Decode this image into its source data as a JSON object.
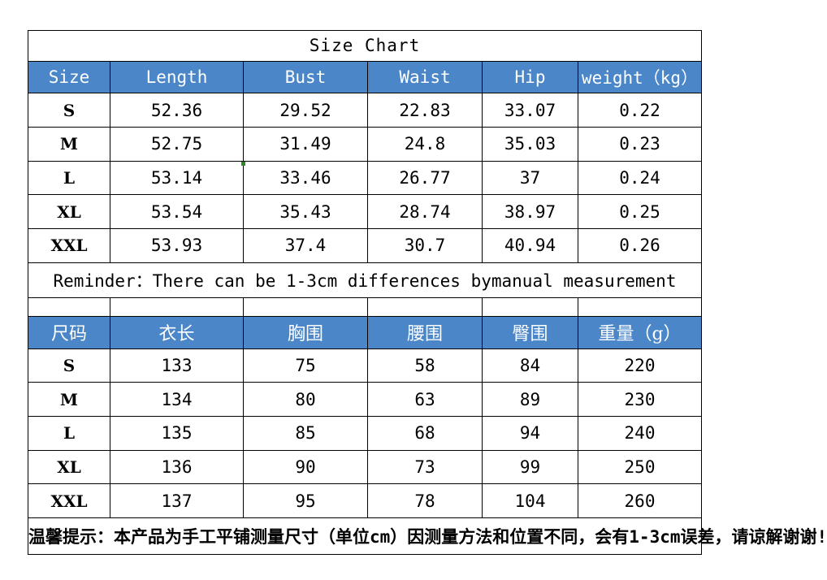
{
  "title": "Size Chart",
  "en_table": {
    "headers": [
      "Size",
      "Length",
      "Bust",
      "Waist",
      "Hip",
      "weight（kg）"
    ],
    "rows": [
      [
        "S",
        "52.36",
        "29.52",
        "22.83",
        "33.07",
        "0.22"
      ],
      [
        "M",
        "52.75",
        "31.49",
        "24.8",
        "35.03",
        "0.23"
      ],
      [
        "L",
        "53.14",
        "33.46",
        "26.77",
        "37",
        "0.24"
      ],
      [
        "XL",
        "53.54",
        "35.43",
        "28.74",
        "38.97",
        "0.25"
      ],
      [
        "XXL",
        "53.93",
        "37.4",
        "30.7",
        "40.94",
        "0.26"
      ]
    ],
    "reminder": "Reminder：There can be 1-3cm differences bymanual measurement"
  },
  "cn_table": {
    "headers": [
      "尺码",
      "衣长",
      "胸围",
      "腰围",
      "臀围",
      "重量（g）"
    ],
    "rows": [
      [
        "S",
        "133",
        "75",
        "58",
        "84",
        "220"
      ],
      [
        "M",
        "134",
        "80",
        "63",
        "89",
        "230"
      ],
      [
        "L",
        "135",
        "85",
        "68",
        "94",
        "240"
      ],
      [
        "XL",
        "136",
        "90",
        "73",
        "99",
        "250"
      ],
      [
        "XXL",
        "137",
        "95",
        "78",
        "104",
        "260"
      ]
    ],
    "note": "温馨提示：本产品为手工平铺测量尺寸（单位cm）因测量方法和位置不同，会有1-3cm误差，请谅解谢谢!"
  },
  "colors": {
    "header_bg": "#4a86c8",
    "header_text": "#ffffff",
    "note_text": "#cc0000",
    "border": "#000000"
  }
}
